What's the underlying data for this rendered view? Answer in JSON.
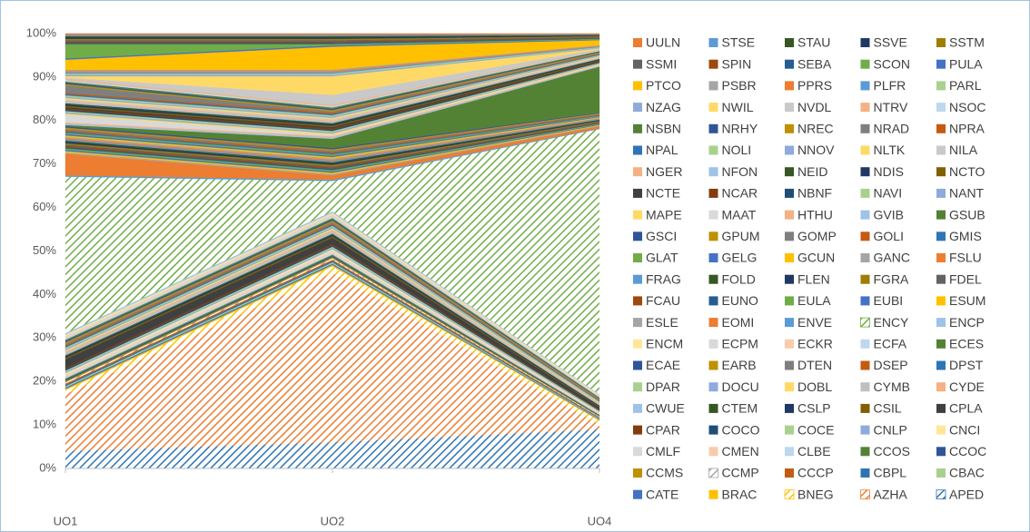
{
  "chart_data": {
    "type": "area",
    "stacked": true,
    "categories": [
      "UO1",
      "UO2",
      "UO4"
    ],
    "ylim": [
      0,
      100
    ],
    "yticks": [
      {
        "value": 0,
        "label": "0%"
      },
      {
        "value": 10,
        "label": "10%"
      },
      {
        "value": 20,
        "label": "20%"
      },
      {
        "value": 30,
        "label": "30%"
      },
      {
        "value": 40,
        "label": "40%"
      },
      {
        "value": 50,
        "label": "50%"
      },
      {
        "value": 60,
        "label": "60%"
      },
      {
        "value": 70,
        "label": "70%"
      },
      {
        "value": 80,
        "label": "80%"
      },
      {
        "value": 90,
        "label": "90%"
      },
      {
        "value": 100,
        "label": "100%"
      }
    ],
    "grid": true,
    "legend": "right",
    "series": [
      {
        "name": "UULN",
        "color": "#ED7D31",
        "values": [
          0.3,
          0.3,
          0.15
        ]
      },
      {
        "name": "STSE",
        "color": "#5B9BD5",
        "values": [
          0.3,
          0.3,
          0.15
        ]
      },
      {
        "name": "STAU",
        "color": "#375623",
        "values": [
          0.3,
          0.3,
          0.15
        ]
      },
      {
        "name": "SSVE",
        "color": "#203864",
        "values": [
          0.3,
          0.3,
          0.15
        ]
      },
      {
        "name": "SSTM",
        "color": "#9E7E00",
        "values": [
          0.3,
          0.3,
          0.15
        ]
      },
      {
        "name": "SSMI",
        "color": "#636363",
        "values": [
          0.3,
          0.3,
          0.15
        ]
      },
      {
        "name": "SPIN",
        "color": "#9E480E",
        "values": [
          0.3,
          0.3,
          0.15
        ]
      },
      {
        "name": "SEBA",
        "color": "#255E91",
        "values": [
          0.3,
          0.3,
          0.15
        ]
      },
      {
        "name": "SCON",
        "color": "#70AD47",
        "values": [
          3.3,
          0.3,
          0.15
        ]
      },
      {
        "name": "PULA",
        "color": "#4472C4",
        "values": [
          0.3,
          0.3,
          0.15
        ]
      },
      {
        "name": "PTCO",
        "color": "#FFC000",
        "values": [
          2.3,
          5.3,
          1.15
        ]
      },
      {
        "name": "PSBR",
        "color": "#A5A5A5",
        "values": [
          0.3,
          0.3,
          0.15
        ]
      },
      {
        "name": "PPRS",
        "color": "#ED7D31",
        "values": [
          0.3,
          0.3,
          0.15
        ]
      },
      {
        "name": "PLFR",
        "color": "#5B9BD5",
        "values": [
          0.3,
          0.3,
          0.15
        ]
      },
      {
        "name": "PARL",
        "color": "#A9D18E",
        "values": [
          0.3,
          0.3,
          0.15
        ]
      },
      {
        "name": "NZAG",
        "color": "#8FAADC",
        "values": [
          0.3,
          0.3,
          0.15
        ]
      },
      {
        "name": "NWIL",
        "color": "#FFD966",
        "values": [
          0.3,
          4.3,
          0.15
        ]
      },
      {
        "name": "NVDL",
        "color": "#C9C9C9",
        "values": [
          0.3,
          2.3,
          0.15
        ]
      },
      {
        "name": "NTRV",
        "color": "#F4B183",
        "values": [
          0.3,
          0.3,
          0.15
        ]
      },
      {
        "name": "NSOC",
        "color": "#BDD7EE",
        "values": [
          0.3,
          0.3,
          0.15
        ]
      },
      {
        "name": "NSBN",
        "color": "#548235",
        "values": [
          0.3,
          0.3,
          0.15
        ]
      },
      {
        "name": "NRHY",
        "color": "#2F5597",
        "values": [
          0.3,
          0.3,
          0.15
        ]
      },
      {
        "name": "NREC",
        "color": "#BF9000",
        "values": [
          0.3,
          0.3,
          0.15
        ]
      },
      {
        "name": "NRAD",
        "color": "#7F7F7F",
        "values": [
          1.7,
          0.3,
          0.15
        ]
      },
      {
        "name": "NPRA",
        "color": "#C55A11",
        "values": [
          0.3,
          0.3,
          0.15
        ]
      },
      {
        "name": "NPAL",
        "color": "#2E75B6",
        "values": [
          0.3,
          0.3,
          0.15
        ]
      },
      {
        "name": "NOLI",
        "color": "#A9D18E",
        "values": [
          0.3,
          0.3,
          0.15
        ]
      },
      {
        "name": "NNOV",
        "color": "#8FAADC",
        "values": [
          0.3,
          0.3,
          0.15
        ]
      },
      {
        "name": "NLTK",
        "color": "#FFD966",
        "values": [
          0.3,
          0.3,
          0.15
        ]
      },
      {
        "name": "NILA",
        "color": "#C9C9C9",
        "values": [
          0.3,
          0.3,
          0.15
        ]
      },
      {
        "name": "NGER",
        "color": "#F4B183",
        "values": [
          0.3,
          0.3,
          0.15
        ]
      },
      {
        "name": "NFON",
        "color": "#9DC3E6",
        "values": [
          0.3,
          0.3,
          0.15
        ]
      },
      {
        "name": "NEID",
        "color": "#375623",
        "values": [
          0.3,
          0.3,
          0.15
        ]
      },
      {
        "name": "NDIS",
        "color": "#203864",
        "values": [
          0.3,
          0.3,
          0.15
        ]
      },
      {
        "name": "NCTO",
        "color": "#7F6000",
        "values": [
          0.3,
          0.3,
          0.15
        ]
      },
      {
        "name": "NCTE",
        "color": "#404040",
        "values": [
          0.3,
          0.3,
          0.15
        ]
      },
      {
        "name": "NCAR",
        "color": "#843C0C",
        "values": [
          0.3,
          0.3,
          0.15
        ]
      },
      {
        "name": "NBNF",
        "color": "#1F4E79",
        "values": [
          0.3,
          0.3,
          0.15
        ]
      },
      {
        "name": "NAVI",
        "color": "#A9D18E",
        "values": [
          0.3,
          0.3,
          0.15
        ]
      },
      {
        "name": "NANT",
        "color": "#8FAADC",
        "values": [
          0.3,
          0.3,
          0.15
        ]
      },
      {
        "name": "MAPE",
        "color": "#FFD966",
        "values": [
          0.3,
          0.3,
          0.15
        ]
      },
      {
        "name": "MAAT",
        "color": "#D9D9D9",
        "values": [
          1.7,
          0.3,
          0.15
        ]
      },
      {
        "name": "HTHU",
        "color": "#F4B183",
        "values": [
          0.3,
          0.3,
          0.15
        ]
      },
      {
        "name": "GVIB",
        "color": "#9DC3E6",
        "values": [
          0.3,
          0.3,
          0.15
        ]
      },
      {
        "name": "GSUB",
        "color": "#548235",
        "values": [
          0.3,
          2.1,
          10.55
        ]
      },
      {
        "name": "GSCI",
        "color": "#2F5597",
        "values": [
          0.3,
          0.3,
          0.15
        ]
      },
      {
        "name": "GPUM",
        "color": "#BF9000",
        "values": [
          0.3,
          0.3,
          0.15
        ]
      },
      {
        "name": "GOMP",
        "color": "#7F7F7F",
        "values": [
          0.3,
          0.3,
          0.15
        ]
      },
      {
        "name": "GOLI",
        "color": "#C55A11",
        "values": [
          0.3,
          0.3,
          0.15
        ]
      },
      {
        "name": "GMIS",
        "color": "#2E75B6",
        "values": [
          0.3,
          0.3,
          0.15
        ]
      },
      {
        "name": "GLAT",
        "color": "#70AD47",
        "values": [
          0.3,
          0.3,
          0.15
        ]
      },
      {
        "name": "GELG",
        "color": "#4472C4",
        "values": [
          0.3,
          0.3,
          0.15
        ]
      },
      {
        "name": "GCUN",
        "color": "#FFC000",
        "values": [
          0.3,
          0.3,
          0.15
        ]
      },
      {
        "name": "GANC",
        "color": "#A5A5A5",
        "values": [
          0.3,
          0.3,
          0.15
        ]
      },
      {
        "name": "FSLU",
        "color": "#ED7D31",
        "values": [
          0.3,
          0.3,
          0.15
        ]
      },
      {
        "name": "FRAG",
        "color": "#5B9BD5",
        "values": [
          0.3,
          0.3,
          0.15
        ]
      },
      {
        "name": "FOLD",
        "color": "#375623",
        "values": [
          0.3,
          0.3,
          0.15
        ]
      },
      {
        "name": "FLEN",
        "color": "#203864",
        "values": [
          0.3,
          0.3,
          0.15
        ]
      },
      {
        "name": "FGRA",
        "color": "#9E7E00",
        "values": [
          0.3,
          0.3,
          0.15
        ]
      },
      {
        "name": "FDEL",
        "color": "#636363",
        "values": [
          0.3,
          0.3,
          0.15
        ]
      },
      {
        "name": "FCAU",
        "color": "#9E480E",
        "values": [
          0.3,
          0.3,
          0.15
        ]
      },
      {
        "name": "EUNO",
        "color": "#255E91",
        "values": [
          0.3,
          0.3,
          0.15
        ]
      },
      {
        "name": "EULA",
        "color": "#70AD47",
        "values": [
          0.3,
          0.3,
          0.15
        ]
      },
      {
        "name": "EUBI",
        "color": "#4472C4",
        "values": [
          0.3,
          0.3,
          0.15
        ]
      },
      {
        "name": "ESUM",
        "color": "#FFC000",
        "values": [
          0.3,
          0.3,
          0.15
        ]
      },
      {
        "name": "ESLE",
        "color": "#A5A5A5",
        "values": [
          0.3,
          0.3,
          0.15
        ]
      },
      {
        "name": "EOMI",
        "color": "#ED7D31",
        "values": [
          5,
          1,
          0.5
        ]
      },
      {
        "name": "ENVE",
        "color": "#5B9BD5",
        "values": [
          0.3,
          0.3,
          0.15
        ]
      },
      {
        "name": "ENCY",
        "color": "#70AD47",
        "hatch": true,
        "values": [
          36,
          7,
          61
        ]
      },
      {
        "name": "ENCP",
        "color": "#9DC3E6",
        "values": [
          0.3,
          0.3,
          0.15
        ]
      },
      {
        "name": "ENCM",
        "color": "#FFE699",
        "values": [
          0.3,
          0.3,
          0.15
        ]
      },
      {
        "name": "ECPM",
        "color": "#D9D9D9",
        "values": [
          0.3,
          0.3,
          0.15
        ]
      },
      {
        "name": "ECKR",
        "color": "#F8CBAD",
        "values": [
          0.3,
          0.3,
          0.15
        ]
      },
      {
        "name": "ECFA",
        "color": "#BDD7EE",
        "values": [
          0.3,
          0.3,
          0.15
        ]
      },
      {
        "name": "ECES",
        "color": "#548235",
        "values": [
          0.3,
          0.3,
          0.15
        ]
      },
      {
        "name": "ECAE",
        "color": "#2F5597",
        "values": [
          0.3,
          0.3,
          0.15
        ]
      },
      {
        "name": "EARB",
        "color": "#BF9000",
        "values": [
          0.3,
          0.3,
          0.15
        ]
      },
      {
        "name": "DTEN",
        "color": "#7F7F7F",
        "values": [
          0.3,
          0.3,
          0.15
        ]
      },
      {
        "name": "DSEP",
        "color": "#C55A11",
        "values": [
          0.3,
          0.3,
          0.15
        ]
      },
      {
        "name": "DPST",
        "color": "#2E75B6",
        "values": [
          0.3,
          0.3,
          0.15
        ]
      },
      {
        "name": "DPAR",
        "color": "#A9D18E",
        "values": [
          0.3,
          0.3,
          0.15
        ]
      },
      {
        "name": "DOCU",
        "color": "#8FAADC",
        "values": [
          0.3,
          0.3,
          0.15
        ]
      },
      {
        "name": "DOBL",
        "color": "#FFD966",
        "values": [
          0.3,
          0.3,
          0.15
        ]
      },
      {
        "name": "CYMB",
        "color": "#BFBFBF",
        "values": [
          0.3,
          0.3,
          0.15
        ]
      },
      {
        "name": "CYDE",
        "color": "#F4B183",
        "values": [
          0.3,
          0.3,
          0.15
        ]
      },
      {
        "name": "CWUE",
        "color": "#9DC3E6",
        "values": [
          0.3,
          0.3,
          0.15
        ]
      },
      {
        "name": "CTEM",
        "color": "#375623",
        "values": [
          0.3,
          0.3,
          0.15
        ]
      },
      {
        "name": "CSLP",
        "color": "#203864",
        "values": [
          0.3,
          0.3,
          0.15
        ]
      },
      {
        "name": "CSIL",
        "color": "#7F6000",
        "values": [
          0.3,
          0.3,
          0.15
        ]
      },
      {
        "name": "CPLA",
        "color": "#404040",
        "values": [
          2,
          1.5,
          0.5
        ]
      },
      {
        "name": "CPAR",
        "color": "#843C0C",
        "values": [
          0.3,
          0.3,
          0.15
        ]
      },
      {
        "name": "COCO",
        "color": "#1F4E79",
        "values": [
          0.3,
          0.3,
          0.15
        ]
      },
      {
        "name": "COCE",
        "color": "#A9D18E",
        "values": [
          0.3,
          0.3,
          0.15
        ]
      },
      {
        "name": "CNLP",
        "color": "#8FAADC",
        "values": [
          0.3,
          0.3,
          0.15
        ]
      },
      {
        "name": "CNCI",
        "color": "#FFE699",
        "values": [
          0.3,
          0.3,
          0.15
        ]
      },
      {
        "name": "CMLF",
        "color": "#D9D9D9",
        "values": [
          0.3,
          0.3,
          0.15
        ]
      },
      {
        "name": "CMEN",
        "color": "#F8CBAD",
        "values": [
          0.3,
          0.3,
          0.15
        ]
      },
      {
        "name": "CLBE",
        "color": "#BDD7EE",
        "values": [
          0.3,
          0.3,
          0.15
        ]
      },
      {
        "name": "CCOS",
        "color": "#548235",
        "values": [
          0.3,
          0.3,
          0.15
        ]
      },
      {
        "name": "CCOC",
        "color": "#2F5597",
        "values": [
          0.3,
          0.3,
          0.15
        ]
      },
      {
        "name": "CCMS",
        "color": "#BF9000",
        "values": [
          0.3,
          0.3,
          0.15
        ]
      },
      {
        "name": "CCMP",
        "color": "#A5A5A5",
        "hatch": true,
        "values": [
          0.3,
          0.3,
          0.15
        ]
      },
      {
        "name": "CCCP",
        "color": "#C55A11",
        "values": [
          0.3,
          0.3,
          0.15
        ]
      },
      {
        "name": "CBPL",
        "color": "#2E75B6",
        "values": [
          0.3,
          0.3,
          0.15
        ]
      },
      {
        "name": "CBAC",
        "color": "#A9D18E",
        "values": [
          0.3,
          0.3,
          0.15
        ]
      },
      {
        "name": "CATE",
        "color": "#4472C4",
        "values": [
          0.3,
          0.3,
          0.15
        ]
      },
      {
        "name": "BRAC",
        "color": "#FFC000",
        "values": [
          0.3,
          0.3,
          0.15
        ]
      },
      {
        "name": "BNEG",
        "color": "#FFC000",
        "hatch": true,
        "values": [
          1,
          1.5,
          1
        ]
      },
      {
        "name": "AZHA",
        "color": "#ED7D31",
        "hatch": true,
        "values": [
          13,
          39,
          1
        ]
      },
      {
        "name": "APED",
        "color": "#2E75B6",
        "hatch": true,
        "values": [
          4,
          6,
          9
        ]
      }
    ]
  }
}
